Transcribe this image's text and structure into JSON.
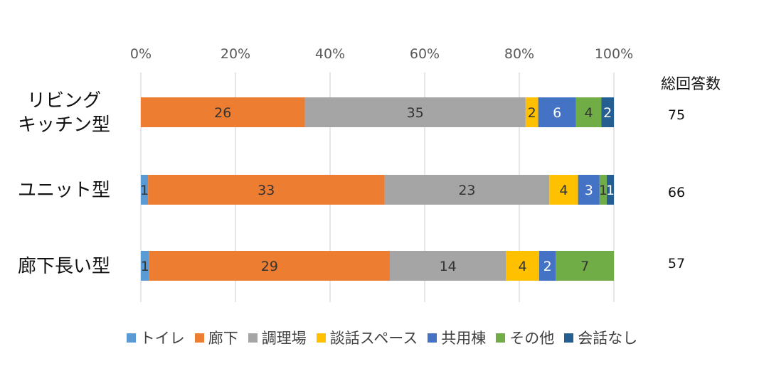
{
  "chart_data": {
    "type": "bar",
    "orientation": "horizontal",
    "stacked": "percent",
    "categories": [
      "リビング\nキッチン型",
      "ユニット型",
      "廊下長い型"
    ],
    "series": [
      {
        "name": "トイレ",
        "color": "#5B9BD5",
        "values": [
          0,
          1,
          1
        ]
      },
      {
        "name": "廊下",
        "color": "#ED7D31",
        "values": [
          26,
          33,
          29
        ]
      },
      {
        "name": "調理場",
        "color": "#A5A5A5",
        "values": [
          35,
          23,
          14
        ]
      },
      {
        "name": "談話スペース",
        "color": "#FFC000",
        "values": [
          2,
          4,
          4
        ]
      },
      {
        "name": "共用棟",
        "color": "#4472C4",
        "values": [
          6,
          3,
          2
        ]
      },
      {
        "name": "その他",
        "color": "#70AD47",
        "values": [
          4,
          1,
          7
        ]
      },
      {
        "name": "会話なし",
        "color": "#255E91",
        "values": [
          2,
          1,
          0
        ]
      }
    ],
    "xaxis": {
      "ticks": [
        "0%",
        "20%",
        "40%",
        "60%",
        "80%",
        "100%"
      ],
      "range": [
        0,
        100
      ],
      "position": "top"
    },
    "grid": true,
    "legend": "bottom",
    "totals_header": "総回答数",
    "totals": [
      "75",
      "66",
      "57"
    ]
  }
}
